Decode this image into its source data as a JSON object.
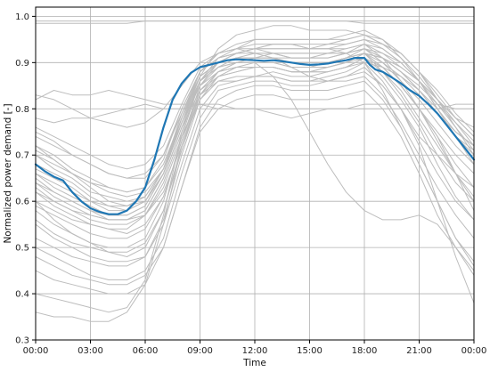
{
  "chart_data": {
    "type": "line",
    "xlabel": "Time",
    "ylabel": "Normalized power demand [-]",
    "x_ticks": [
      "00:00",
      "03:00",
      "06:00",
      "09:00",
      "12:00",
      "15:00",
      "18:00",
      "21:00",
      "00:00"
    ],
    "y_ticks": [
      "0.3",
      "0.4",
      "0.5",
      "0.6",
      "0.7",
      "0.8",
      "0.9",
      "1.0"
    ],
    "xlim": [
      0,
      24
    ],
    "ylim": [
      0.3,
      1.02
    ],
    "grid": true,
    "colors": {
      "mean": "#1f77b4",
      "profiles": "#bdbdbd",
      "grid": "#b0b0b0",
      "axes": "#000000"
    },
    "x_hours": [
      0,
      1,
      2,
      3,
      4,
      5,
      6,
      7,
      8,
      9,
      10,
      11,
      12,
      13,
      14,
      15,
      16,
      17,
      18,
      19,
      20,
      21,
      22,
      23,
      24
    ],
    "mean_series": {
      "x": [
        0,
        0.5,
        1,
        1.5,
        2,
        2.5,
        3,
        3.5,
        4,
        4.5,
        5,
        5.5,
        6,
        6.5,
        7,
        7.5,
        8,
        8.5,
        9,
        9.5,
        10,
        10.5,
        11,
        11.5,
        12,
        12.5,
        13,
        13.5,
        14,
        14.5,
        15,
        15.5,
        16,
        16.5,
        17,
        17.5,
        18,
        18.3,
        18.6,
        19,
        19.5,
        20,
        20.5,
        21,
        21.5,
        22,
        22.5,
        23,
        23.5,
        24
      ],
      "y": [
        0.68,
        0.665,
        0.653,
        0.645,
        0.62,
        0.6,
        0.585,
        0.577,
        0.572,
        0.572,
        0.58,
        0.6,
        0.63,
        0.69,
        0.76,
        0.82,
        0.855,
        0.878,
        0.89,
        0.895,
        0.9,
        0.905,
        0.907,
        0.906,
        0.905,
        0.904,
        0.905,
        0.903,
        0.9,
        0.897,
        0.895,
        0.896,
        0.898,
        0.902,
        0.905,
        0.91,
        0.91,
        0.895,
        0.885,
        0.88,
        0.868,
        0.855,
        0.84,
        0.828,
        0.81,
        0.79,
        0.765,
        0.74,
        0.715,
        0.69
      ]
    },
    "profile_series": [
      {
        "y": [
          0.99,
          0.99,
          0.99,
          0.99,
          0.99,
          0.99,
          0.99,
          0.99,
          0.99,
          0.99,
          0.99,
          0.99,
          0.99,
          0.99,
          0.99,
          0.99,
          0.99,
          0.99,
          0.99,
          0.99,
          0.99,
          0.99,
          0.99,
          0.99,
          0.99
        ]
      },
      {
        "y": [
          0.985,
          0.985,
          0.985,
          0.985,
          0.985,
          0.985,
          0.99,
          0.99,
          0.99,
          0.99,
          0.99,
          0.99,
          0.99,
          0.99,
          0.99,
          0.99,
          0.99,
          0.99,
          0.985,
          0.985,
          0.985,
          0.985,
          0.985,
          0.985,
          0.985
        ]
      },
      {
        "y": [
          0.82,
          0.84,
          0.83,
          0.83,
          0.84,
          0.83,
          0.82,
          0.81,
          0.81,
          0.81,
          0.8,
          0.8,
          0.8,
          0.79,
          0.78,
          0.79,
          0.8,
          0.8,
          0.8,
          0.8,
          0.8,
          0.8,
          0.8,
          0.81,
          0.81
        ]
      },
      {
        "y": [
          0.78,
          0.77,
          0.78,
          0.78,
          0.79,
          0.8,
          0.81,
          0.8,
          0.8,
          0.81,
          0.81,
          0.8,
          0.8,
          0.8,
          0.8,
          0.8,
          0.8,
          0.8,
          0.81,
          0.81,
          0.81,
          0.81,
          0.81,
          0.8,
          0.8
        ]
      },
      {
        "y": [
          0.72,
          0.69,
          0.66,
          0.63,
          0.6,
          0.59,
          0.6,
          0.67,
          0.78,
          0.87,
          0.9,
          0.92,
          0.93,
          0.94,
          0.94,
          0.93,
          0.93,
          0.94,
          0.95,
          0.93,
          0.9,
          0.86,
          0.8,
          0.74,
          0.7
        ]
      },
      {
        "y": [
          0.65,
          0.62,
          0.6,
          0.58,
          0.56,
          0.56,
          0.57,
          0.62,
          0.72,
          0.82,
          0.86,
          0.86,
          0.87,
          0.87,
          0.86,
          0.86,
          0.87,
          0.88,
          0.9,
          0.89,
          0.87,
          0.84,
          0.8,
          0.75,
          0.72
        ]
      },
      {
        "y": [
          0.6,
          0.56,
          0.53,
          0.51,
          0.49,
          0.48,
          0.5,
          0.58,
          0.72,
          0.84,
          0.88,
          0.9,
          0.91,
          0.91,
          0.9,
          0.9,
          0.9,
          0.91,
          0.92,
          0.88,
          0.83,
          0.77,
          0.7,
          0.64,
          0.6
        ]
      },
      {
        "y": [
          0.7,
          0.68,
          0.66,
          0.64,
          0.63,
          0.62,
          0.63,
          0.68,
          0.78,
          0.86,
          0.89,
          0.9,
          0.9,
          0.9,
          0.89,
          0.89,
          0.9,
          0.91,
          0.93,
          0.91,
          0.88,
          0.84,
          0.79,
          0.74,
          0.71
        ]
      },
      {
        "y": [
          0.74,
          0.72,
          0.7,
          0.68,
          0.66,
          0.65,
          0.66,
          0.7,
          0.8,
          0.88,
          0.91,
          0.92,
          0.93,
          0.93,
          0.93,
          0.93,
          0.94,
          0.94,
          0.95,
          0.94,
          0.92,
          0.88,
          0.84,
          0.79,
          0.75
        ]
      },
      {
        "y": [
          0.55,
          0.52,
          0.5,
          0.48,
          0.47,
          0.47,
          0.48,
          0.55,
          0.68,
          0.8,
          0.85,
          0.86,
          0.87,
          0.87,
          0.86,
          0.86,
          0.86,
          0.87,
          0.88,
          0.85,
          0.8,
          0.73,
          0.66,
          0.6,
          0.56
        ]
      },
      {
        "y": [
          0.62,
          0.59,
          0.57,
          0.55,
          0.54,
          0.53,
          0.55,
          0.61,
          0.73,
          0.85,
          0.9,
          0.92,
          0.93,
          0.94,
          0.94,
          0.94,
          0.94,
          0.95,
          0.96,
          0.95,
          0.92,
          0.88,
          0.82,
          0.76,
          0.7
        ]
      },
      {
        "y": [
          0.68,
          0.66,
          0.64,
          0.61,
          0.59,
          0.58,
          0.6,
          0.66,
          0.77,
          0.87,
          0.93,
          0.96,
          0.97,
          0.98,
          0.98,
          0.97,
          0.97,
          0.97,
          0.96,
          0.94,
          0.92,
          0.88,
          0.83,
          0.78,
          0.74
        ]
      },
      {
        "y": [
          0.5,
          0.48,
          0.46,
          0.44,
          0.43,
          0.43,
          0.45,
          0.52,
          0.66,
          0.78,
          0.84,
          0.85,
          0.86,
          0.86,
          0.85,
          0.85,
          0.86,
          0.86,
          0.87,
          0.83,
          0.77,
          0.7,
          0.63,
          0.57,
          0.52
        ]
      },
      {
        "y": [
          0.64,
          0.61,
          0.59,
          0.57,
          0.56,
          0.56,
          0.58,
          0.65,
          0.76,
          0.84,
          0.87,
          0.88,
          0.89,
          0.89,
          0.88,
          0.88,
          0.89,
          0.9,
          0.92,
          0.91,
          0.88,
          0.85,
          0.81,
          0.77,
          0.73
        ]
      },
      {
        "y": [
          0.58,
          0.55,
          0.53,
          0.51,
          0.5,
          0.5,
          0.52,
          0.6,
          0.74,
          0.86,
          0.9,
          0.91,
          0.91,
          0.91,
          0.9,
          0.9,
          0.9,
          0.91,
          0.92,
          0.89,
          0.85,
          0.8,
          0.74,
          0.68,
          0.63
        ]
      },
      {
        "y": [
          0.76,
          0.74,
          0.72,
          0.7,
          0.68,
          0.67,
          0.68,
          0.72,
          0.81,
          0.89,
          0.92,
          0.93,
          0.94,
          0.94,
          0.94,
          0.93,
          0.93,
          0.93,
          0.94,
          0.92,
          0.89,
          0.86,
          0.82,
          0.78,
          0.76
        ]
      },
      {
        "y": [
          0.66,
          0.63,
          0.61,
          0.59,
          0.57,
          0.57,
          0.59,
          0.66,
          0.77,
          0.85,
          0.89,
          0.91,
          0.92,
          0.92,
          0.92,
          0.92,
          0.92,
          0.92,
          0.93,
          0.9,
          0.86,
          0.82,
          0.77,
          0.72,
          0.68
        ]
      },
      {
        "y": [
          0.7,
          0.67,
          0.65,
          0.62,
          0.61,
          0.6,
          0.61,
          0.67,
          0.79,
          0.88,
          0.92,
          0.93,
          0.93,
          0.92,
          0.91,
          0.91,
          0.92,
          0.92,
          0.93,
          0.92,
          0.9,
          0.86,
          0.8,
          0.74,
          0.69
        ]
      },
      {
        "y": [
          0.52,
          0.5,
          0.48,
          0.47,
          0.46,
          0.46,
          0.48,
          0.56,
          0.7,
          0.82,
          0.87,
          0.89,
          0.9,
          0.9,
          0.89,
          0.89,
          0.89,
          0.9,
          0.91,
          0.87,
          0.82,
          0.76,
          0.68,
          0.61,
          0.56
        ]
      },
      {
        "y": [
          0.6,
          0.58,
          0.56,
          0.55,
          0.54,
          0.54,
          0.57,
          0.64,
          0.75,
          0.86,
          0.91,
          0.93,
          0.95,
          0.95,
          0.95,
          0.95,
          0.95,
          0.96,
          0.97,
          0.95,
          0.91,
          0.86,
          0.8,
          0.74,
          0.68
        ]
      },
      {
        "y": [
          0.72,
          0.7,
          0.67,
          0.65,
          0.63,
          0.62,
          0.63,
          0.69,
          0.8,
          0.88,
          0.91,
          0.92,
          0.92,
          0.92,
          0.91,
          0.91,
          0.91,
          0.92,
          0.93,
          0.91,
          0.88,
          0.84,
          0.79,
          0.74,
          0.7
        ]
      },
      {
        "y": [
          0.63,
          0.6,
          0.58,
          0.56,
          0.55,
          0.55,
          0.57,
          0.63,
          0.74,
          0.83,
          0.86,
          0.87,
          0.87,
          0.88,
          0.87,
          0.87,
          0.88,
          0.89,
          0.91,
          0.89,
          0.85,
          0.8,
          0.75,
          0.7,
          0.66
        ]
      },
      {
        "y": [
          0.56,
          0.53,
          0.51,
          0.5,
          0.49,
          0.49,
          0.51,
          0.58,
          0.71,
          0.83,
          0.88,
          0.9,
          0.91,
          0.92,
          0.92,
          0.92,
          0.92,
          0.93,
          0.94,
          0.91,
          0.86,
          0.8,
          0.73,
          0.66,
          0.6
        ]
      },
      {
        "y": [
          0.67,
          0.65,
          0.63,
          0.6,
          0.58,
          0.58,
          0.6,
          0.66,
          0.77,
          0.86,
          0.9,
          0.91,
          0.91,
          0.91,
          0.91,
          0.91,
          0.91,
          0.92,
          0.94,
          0.93,
          0.9,
          0.86,
          0.81,
          0.76,
          0.71
        ]
      },
      {
        "y": [
          0.75,
          0.73,
          0.7,
          0.68,
          0.66,
          0.65,
          0.65,
          0.7,
          0.79,
          0.87,
          0.9,
          0.91,
          0.91,
          0.91,
          0.9,
          0.9,
          0.9,
          0.91,
          0.92,
          0.91,
          0.89,
          0.86,
          0.82,
          0.78,
          0.74
        ]
      },
      {
        "y": [
          0.59,
          0.57,
          0.55,
          0.53,
          0.52,
          0.52,
          0.54,
          0.61,
          0.73,
          0.84,
          0.88,
          0.89,
          0.89,
          0.89,
          0.88,
          0.88,
          0.88,
          0.89,
          0.91,
          0.88,
          0.84,
          0.78,
          0.72,
          0.66,
          0.61
        ]
      },
      {
        "y": [
          0.64,
          0.62,
          0.6,
          0.58,
          0.57,
          0.57,
          0.59,
          0.66,
          0.78,
          0.88,
          0.92,
          0.94,
          0.95,
          0.95,
          0.95,
          0.95,
          0.95,
          0.95,
          0.96,
          0.94,
          0.91,
          0.87,
          0.82,
          0.77,
          0.72
        ]
      },
      {
        "y": [
          0.48,
          0.46,
          0.44,
          0.43,
          0.42,
          0.42,
          0.44,
          0.5,
          0.63,
          0.76,
          0.82,
          0.84,
          0.85,
          0.85,
          0.84,
          0.84,
          0.84,
          0.85,
          0.86,
          0.82,
          0.76,
          0.68,
          0.6,
          0.52,
          0.47
        ]
      },
      {
        "y": [
          0.71,
          0.69,
          0.66,
          0.64,
          0.62,
          0.61,
          0.62,
          0.67,
          0.77,
          0.85,
          0.88,
          0.89,
          0.89,
          0.89,
          0.88,
          0.88,
          0.89,
          0.9,
          0.92,
          0.9,
          0.87,
          0.83,
          0.79,
          0.75,
          0.72
        ]
      },
      {
        "y": [
          0.45,
          0.43,
          0.42,
          0.41,
          0.4,
          0.4,
          0.42,
          0.5,
          0.63,
          0.75,
          0.8,
          0.82,
          0.83,
          0.83,
          0.82,
          0.82,
          0.82,
          0.83,
          0.84,
          0.8,
          0.74,
          0.66,
          0.57,
          0.5,
          0.45
        ]
      },
      {
        "y": [
          0.36,
          0.35,
          0.35,
          0.34,
          0.34,
          0.36,
          0.42,
          0.55,
          0.72,
          0.83,
          0.87,
          0.88,
          0.89,
          0.89,
          0.88,
          0.88,
          0.88,
          0.89,
          0.9,
          0.86,
          0.8,
          0.72,
          0.6,
          0.48,
          0.38
        ]
      },
      {
        "y": [
          0.4,
          0.39,
          0.38,
          0.37,
          0.36,
          0.37,
          0.43,
          0.57,
          0.75,
          0.86,
          0.89,
          0.9,
          0.9,
          0.87,
          0.82,
          0.75,
          0.68,
          0.62,
          0.58,
          0.56,
          0.56,
          0.57,
          0.55,
          0.5,
          0.44
        ]
      },
      {
        "y": [
          0.83,
          0.82,
          0.8,
          0.78,
          0.77,
          0.76,
          0.77,
          0.8,
          0.85,
          0.9,
          0.92,
          0.93,
          0.92,
          0.91,
          0.89,
          0.87,
          0.86,
          0.87,
          0.89,
          0.85,
          0.8,
          0.74,
          0.7,
          0.66,
          0.63
        ]
      },
      {
        "y": [
          0.62,
          0.6,
          0.58,
          0.57,
          0.56,
          0.56,
          0.58,
          0.65,
          0.76,
          0.86,
          0.9,
          0.92,
          0.93,
          0.93,
          0.93,
          0.93,
          0.93,
          0.92,
          0.9,
          0.84,
          0.76,
          0.68,
          0.6,
          0.52,
          0.46
        ]
      },
      {
        "y": [
          0.66,
          0.64,
          0.62,
          0.6,
          0.59,
          0.59,
          0.61,
          0.67,
          0.78,
          0.87,
          0.9,
          0.91,
          0.91,
          0.91,
          0.9,
          0.9,
          0.9,
          0.91,
          0.92,
          0.89,
          0.85,
          0.8,
          0.74,
          0.66,
          0.58
        ]
      }
    ]
  }
}
